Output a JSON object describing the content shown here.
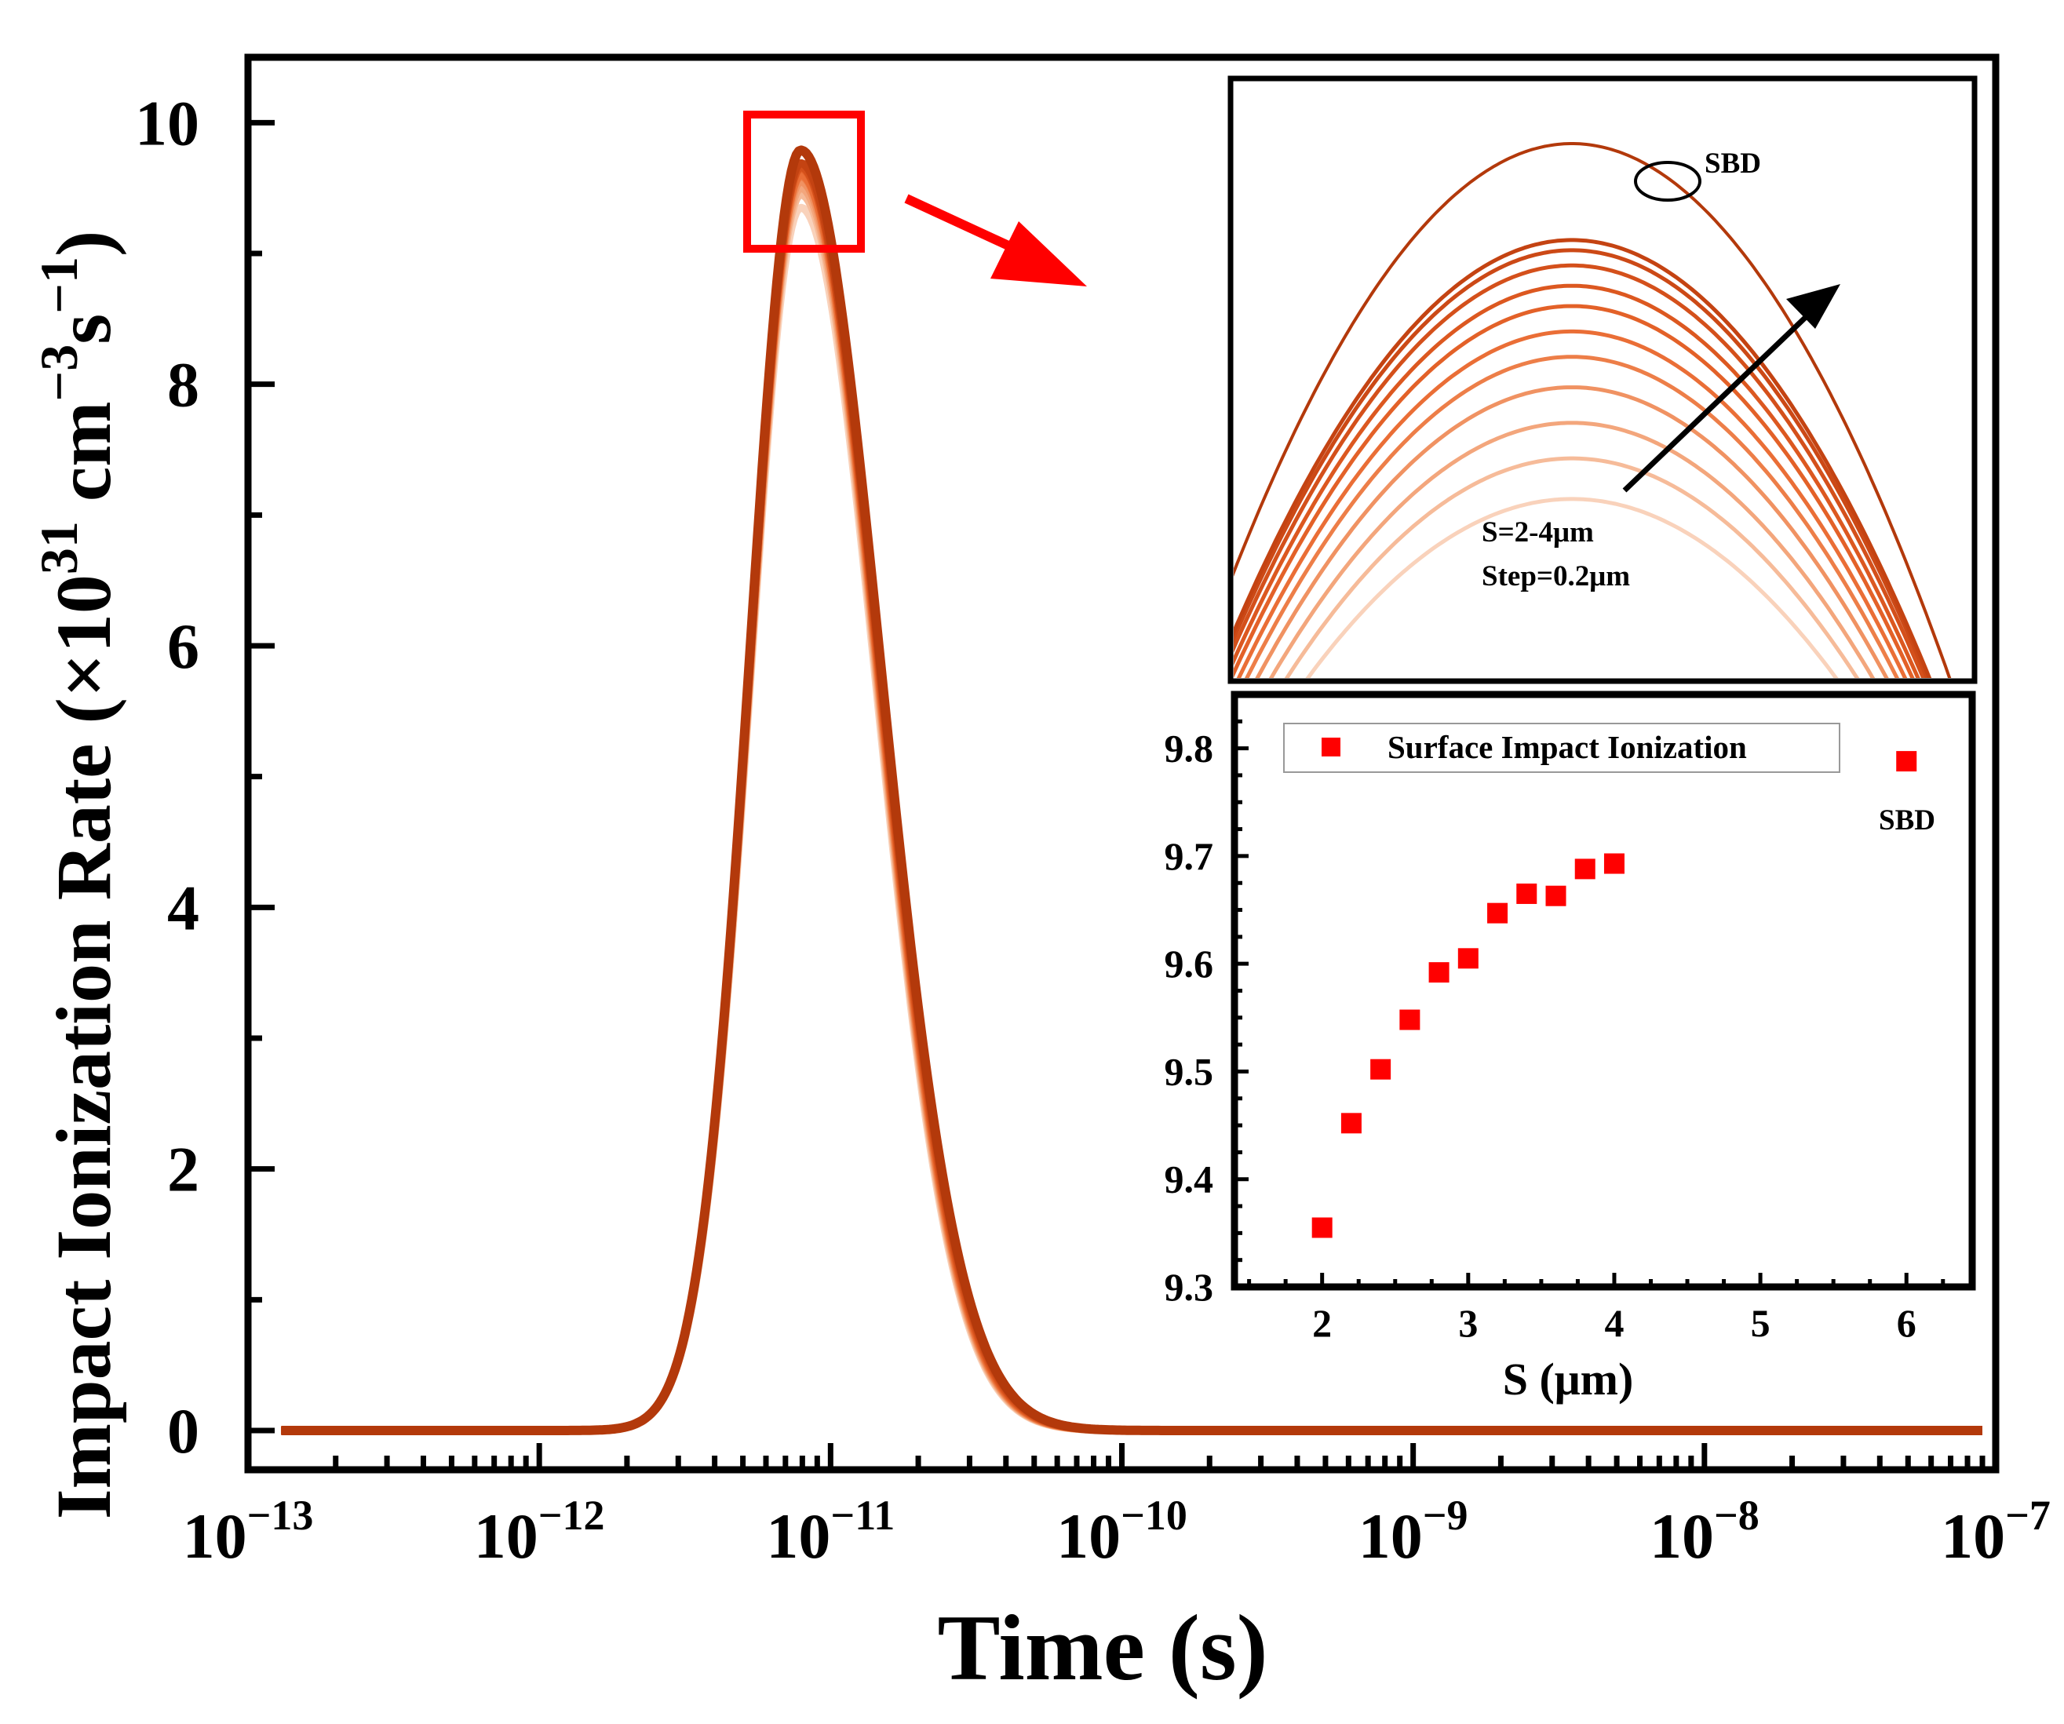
{
  "chart_data": [
    {
      "type": "line",
      "role": "main",
      "xlabel": "Time (s)",
      "ylabel": "Impact Ionization Rate (×10^31 cm^-3 s^-1)",
      "ylabel_parts": {
        "main": "Impact Ionization Rate (×10",
        "exp1": "31",
        "mid": " cm",
        "exp2": "−3",
        "s": "s",
        "exp3": "−1",
        "close": ")"
      },
      "xscale": "log",
      "xlim": [
        1e-13,
        1e-07
      ],
      "ylim": [
        -0.3,
        10.5
      ],
      "x_ticks": [
        {
          "base": "10",
          "exp": "−13"
        },
        {
          "base": "10",
          "exp": "−12"
        },
        {
          "base": "10",
          "exp": "−11"
        },
        {
          "base": "10",
          "exp": "−10"
        },
        {
          "base": "10",
          "exp": "−9"
        },
        {
          "base": "10",
          "exp": "−8"
        },
        {
          "base": "10",
          "exp": "−7"
        }
      ],
      "y_ticks": [
        "0",
        "2",
        "4",
        "6",
        "8",
        "10"
      ],
      "series_description": "Gaussian-like pulse in log-time, one curve per S value",
      "peak_time_s": 7.9e-12,
      "peak_values": [
        9.35,
        9.45,
        9.5,
        9.55,
        9.59,
        9.6,
        9.65,
        9.66,
        9.66,
        9.69,
        9.69,
        9.79
      ],
      "curve_colors": [
        "#f9d2bb",
        "#f6bb99",
        "#f3a67c",
        "#f09262",
        "#ed7e48",
        "#ea6e36",
        "#e36128",
        "#dc5820",
        "#d4501b",
        "#cc4916",
        "#c44312",
        "#b3390b"
      ],
      "zoom_annotation": "red box around peak with arrow to inset"
    },
    {
      "type": "line",
      "role": "inset-zoom",
      "curve_peaks_relative": [
        0.3,
        0.38,
        0.45,
        0.52,
        0.58,
        0.63,
        0.68,
        0.72,
        0.76,
        0.79,
        0.81,
        1.0
      ],
      "annotation_sbd": "SBD",
      "annotation_range": "S=2-4μm",
      "annotation_step": "Step=0.2μm"
    },
    {
      "type": "scatter",
      "role": "inset-scatter",
      "xlabel": "S (μm)",
      "ylabel": "",
      "xlim": [
        1.4,
        6.45
      ],
      "ylim": [
        9.3,
        9.85
      ],
      "x_ticks": [
        "2",
        "3",
        "4",
        "5",
        "6"
      ],
      "y_ticks": [
        "9.3",
        "9.4",
        "9.5",
        "9.6",
        "9.7",
        "9.8"
      ],
      "legend": "Surface Impact Ionization",
      "marker_color": "#ff0000",
      "points": [
        {
          "x": 2.0,
          "y": 9.355
        },
        {
          "x": 2.2,
          "y": 9.452
        },
        {
          "x": 2.4,
          "y": 9.502
        },
        {
          "x": 2.6,
          "y": 9.548
        },
        {
          "x": 2.8,
          "y": 9.592
        },
        {
          "x": 3.0,
          "y": 9.605
        },
        {
          "x": 3.2,
          "y": 9.647
        },
        {
          "x": 3.4,
          "y": 9.665
        },
        {
          "x": 3.6,
          "y": 9.663
        },
        {
          "x": 3.8,
          "y": 9.688
        },
        {
          "x": 4.0,
          "y": 9.693
        },
        {
          "x": 6.0,
          "y": 9.788
        }
      ],
      "annotation_sbd": "SBD"
    }
  ]
}
